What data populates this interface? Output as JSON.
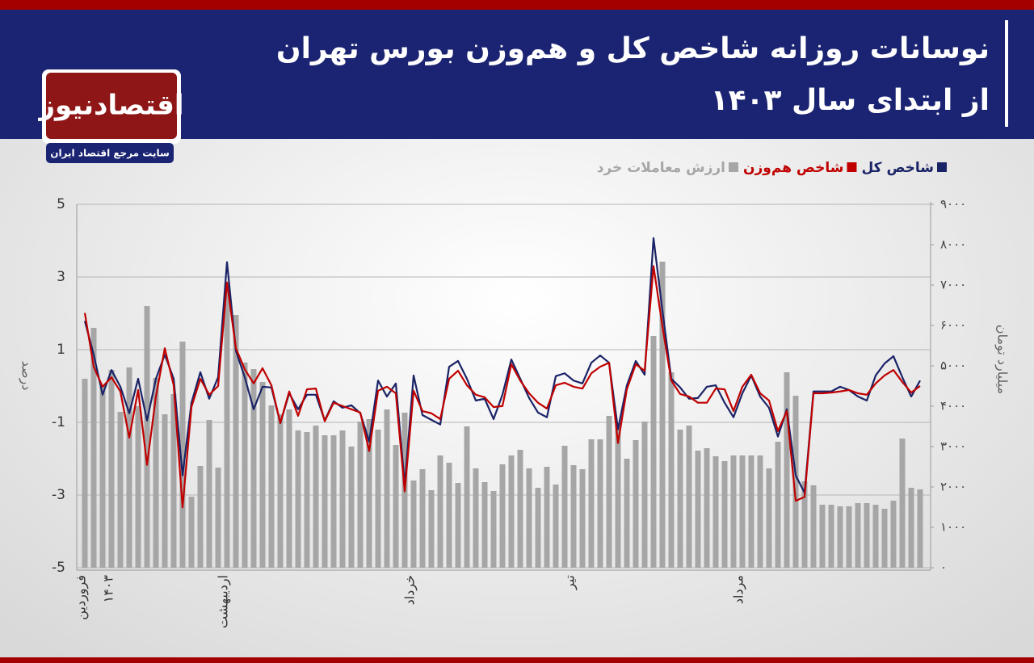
{
  "brand": {
    "name": "اقتصادنیوز",
    "tagline": "سایت مرجع اقتصاد ایران"
  },
  "chart_data": {
    "type": "combo",
    "title": "نوسانات روزانه شاخص کل و هم‌وزن بورس تهران",
    "subtitle": "از ابتدای سال ۱۴۰۳",
    "y_label": "درصد",
    "y2_label": "میلیارد تومان",
    "year_label": "۱۴۰۳",
    "categories": [
      "فروردین",
      null,
      null,
      null,
      null,
      null,
      null,
      null,
      null,
      null,
      null,
      null,
      null,
      null,
      null,
      null,
      "اردیبهشت",
      null,
      null,
      null,
      null,
      null,
      null,
      null,
      null,
      null,
      null,
      null,
      null,
      null,
      null,
      null,
      null,
      null,
      null,
      null,
      null,
      "خرداد",
      null,
      null,
      null,
      null,
      null,
      null,
      null,
      null,
      null,
      null,
      null,
      null,
      null,
      null,
      null,
      null,
      null,
      "تیر",
      null,
      null,
      null,
      null,
      null,
      null,
      null,
      null,
      null,
      null,
      null,
      null,
      null,
      null,
      null,
      null,
      null,
      null,
      "مرداد",
      null,
      null,
      null,
      null,
      null,
      null,
      null,
      null,
      null,
      null,
      null,
      null,
      null,
      null,
      null,
      null,
      null,
      null,
      null,
      null
    ],
    "series": [
      {
        "name": "ارزش معاملات خرد",
        "type": "bar",
        "axis": "y2",
        "color": "#a6a6a6",
        "values": [
          4680,
          5940,
          4500,
          4900,
          3860,
          4960,
          4000,
          6480,
          4700,
          3800,
          4300,
          5600,
          1760,
          2520,
          3660,
          2480,
          7040,
          6260,
          5080,
          4920,
          4600,
          4020,
          3800,
          3920,
          3400,
          3360,
          3520,
          3280,
          3280,
          3400,
          3000,
          3620,
          3680,
          3420,
          3920,
          3040,
          3840,
          2160,
          2440,
          1920,
          2780,
          2600,
          2100,
          3500,
          2460,
          2120,
          1900,
          2560,
          2780,
          2920,
          2460,
          1980,
          2500,
          2060,
          3020,
          2540,
          2440,
          3180,
          3180,
          3760,
          3580,
          2700,
          3160,
          3620,
          5740,
          7580,
          4840,
          3420,
          3520,
          2900,
          2960,
          2760,
          2640,
          2780,
          2780,
          2780,
          2780,
          2460,
          3120,
          4840,
          4260,
          2140,
          2040,
          1560,
          1560,
          1520,
          1520,
          1600,
          1600,
          1560,
          1460,
          1660,
          3200,
          1980,
          1940
        ]
      },
      {
        "name": "شاخص کل",
        "type": "line",
        "color": "#1a2366",
        "values": [
          1.79,
          0.86,
          -0.24,
          0.44,
          -0.02,
          -0.75,
          0.2,
          -0.95,
          0.2,
          0.86,
          0.2,
          -2.46,
          -0.46,
          0.38,
          -0.35,
          0.24,
          3.41,
          0.97,
          0.24,
          -0.64,
          -0.02,
          -0.04,
          -1.02,
          -0.2,
          -0.64,
          -0.24,
          -0.24,
          -0.95,
          -0.42,
          -0.6,
          -0.53,
          -0.75,
          -1.53,
          0.15,
          -0.29,
          0.07,
          -2.72,
          0.29,
          -0.8,
          -0.93,
          -1.06,
          0.53,
          0.69,
          0.2,
          -0.4,
          -0.35,
          -0.91,
          -0.24,
          0.73,
          0.2,
          -0.33,
          -0.73,
          -0.86,
          0.27,
          0.35,
          0.15,
          0.07,
          0.64,
          0.84,
          0.64,
          -1.19,
          0.02,
          0.69,
          0.31,
          4.07,
          2.08,
          0.2,
          -0.04,
          -0.35,
          -0.33,
          -0.02,
          0.02,
          -0.46,
          -0.86,
          -0.2,
          0.29,
          -0.29,
          -0.6,
          -1.39,
          -0.64,
          -2.46,
          -2.94,
          -0.15,
          -0.15,
          -0.15,
          -0.02,
          -0.11,
          -0.29,
          -0.4,
          0.29,
          0.62,
          0.82,
          0.24,
          -0.29,
          0.15
        ]
      },
      {
        "name": "شاخص هم‌وزن",
        "type": "line",
        "color": "#c00000",
        "values": [
          2.01,
          0.53,
          -0.02,
          0.24,
          -0.15,
          -1.42,
          -0.11,
          -2.17,
          -0.29,
          1.04,
          0.02,
          -3.34,
          -0.58,
          0.2,
          -0.24,
          0.0,
          2.85,
          1.04,
          0.46,
          0.07,
          0.49,
          0.02,
          -1.02,
          -0.15,
          -0.82,
          -0.09,
          -0.07,
          -0.97,
          -0.46,
          -0.55,
          -0.64,
          -0.73,
          -1.79,
          -0.13,
          -0.02,
          -0.2,
          -2.9,
          -0.13,
          -0.69,
          -0.75,
          -0.91,
          0.2,
          0.42,
          0.02,
          -0.24,
          -0.31,
          -0.58,
          -0.55,
          0.6,
          0.15,
          -0.2,
          -0.46,
          -0.62,
          0.02,
          0.09,
          -0.02,
          -0.07,
          0.35,
          0.53,
          0.64,
          -1.57,
          -0.09,
          0.6,
          0.42,
          3.3,
          1.64,
          0.15,
          -0.22,
          -0.29,
          -0.46,
          -0.46,
          -0.07,
          -0.09,
          -0.69,
          -0.02,
          0.31,
          -0.2,
          -0.4,
          -1.24,
          -0.69,
          -3.16,
          -3.05,
          -0.2,
          -0.2,
          -0.18,
          -0.15,
          -0.11,
          -0.2,
          -0.24,
          0.07,
          0.29,
          0.44,
          0.11,
          -0.18,
          0.0
        ]
      }
    ],
    "ylim": [
      -5,
      5
    ],
    "yticks": [
      -5,
      -3,
      -1,
      1,
      3,
      5
    ],
    "y2lim": [
      0,
      9000
    ],
    "y2ticks": [
      {
        "value": 0,
        "label": "۰"
      },
      {
        "value": 1000,
        "label": "۱۰۰۰"
      },
      {
        "value": 2000,
        "label": "۲۰۰۰"
      },
      {
        "value": 3000,
        "label": "۳۰۰۰"
      },
      {
        "value": 4000,
        "label": "۴۰۰۰"
      },
      {
        "value": 5000,
        "label": "۵۰۰۰"
      },
      {
        "value": 6000,
        "label": "۶۰۰۰"
      },
      {
        "value": 7000,
        "label": "۷۰۰۰"
      },
      {
        "value": 8000,
        "label": "۸۰۰۰"
      },
      {
        "value": 9000,
        "label": "۹۰۰۰"
      }
    ],
    "grid": true
  }
}
